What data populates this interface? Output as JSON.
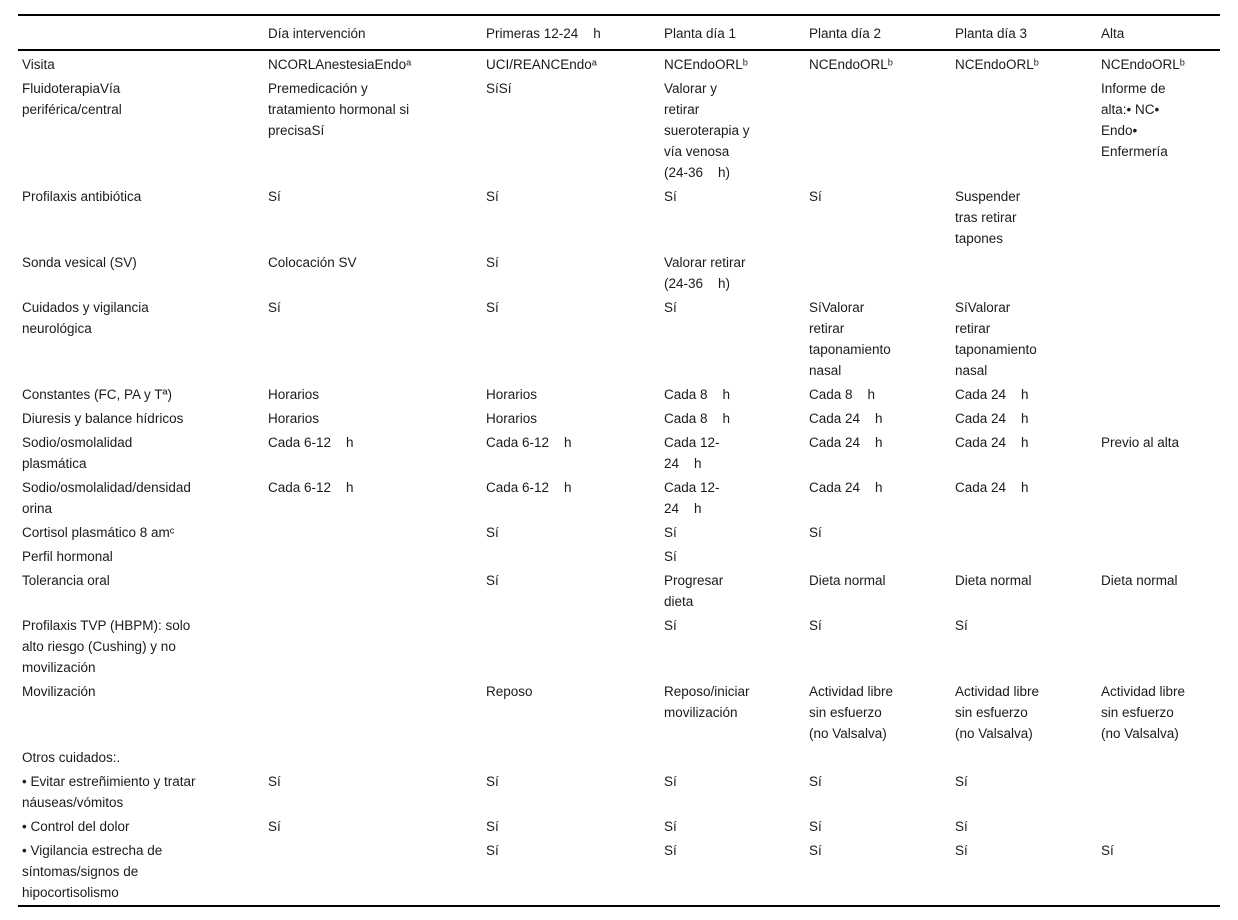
{
  "colors": {
    "background": "#ffffff",
    "text": "#1b1b1b",
    "rule": "#000000"
  },
  "table": {
    "columns": [
      "",
      "Día intervención",
      "Primeras 12-24    h",
      "Planta día 1",
      "Planta día 2",
      "Planta día 3",
      "Alta"
    ],
    "rows": [
      {
        "label": "Visita",
        "cells": [
          "NCORLAnestesiaEndoᵃ",
          "UCI/REANCEndoᵃ",
          "NCEndoORLᵇ",
          "NCEndoORLᵇ",
          "NCEndoORLᵇ",
          "NCEndoORLᵇ"
        ]
      },
      {
        "label": "FluidoterapiaVía\nperiférica/central",
        "cells": [
          "Premedicación y\ntratamiento hormonal si\nprecisaSí",
          "SíSí",
          "Valorar y\nretirar\nsueroterapia y\nvía venosa\n(24-36    h)",
          "",
          "",
          "Informe de\nalta:• NC•\nEndo•\nEnfermería"
        ]
      },
      {
        "label": "Profilaxis antibiótica",
        "cells": [
          "Sí",
          "Sí",
          "Sí",
          "Sí",
          "Suspender\ntras retirar\ntapones",
          ""
        ]
      },
      {
        "label": "Sonda vesical (SV)",
        "cells": [
          "Colocación SV",
          "Sí",
          "Valorar retirar\n(24-36    h)",
          "",
          "",
          ""
        ]
      },
      {
        "label": "Cuidados y vigilancia\nneurológica",
        "cells": [
          "Sí",
          "Sí",
          "Sí",
          "SíValorar\nretirar\ntaponamiento\nnasal",
          "SíValorar\nretirar\ntaponamiento\nnasal",
          ""
        ]
      },
      {
        "label": "Constantes (FC, PA y Tª)",
        "cells": [
          "Horarios",
          "Horarios",
          "Cada 8    h",
          "Cada 8    h",
          "Cada 24    h",
          ""
        ]
      },
      {
        "label": "Diuresis y balance hídricos",
        "cells": [
          "Horarios",
          "Horarios",
          "Cada 8    h",
          "Cada 24    h",
          "Cada 24    h",
          ""
        ]
      },
      {
        "label": "Sodio/osmolalidad\nplasmática",
        "cells": [
          "Cada 6-12    h",
          "Cada 6-12    h",
          "Cada 12-\n24    h",
          "Cada 24    h",
          "Cada 24    h",
          "Previo al alta"
        ]
      },
      {
        "label": "Sodio/osmolalidad/densidad\norina",
        "cells": [
          "Cada 6-12    h",
          "Cada 6-12    h",
          "Cada 12-\n24    h",
          "Cada 24    h",
          "Cada 24    h",
          ""
        ]
      },
      {
        "label": "Cortisol plasmático 8 amᶜ",
        "cells": [
          "",
          "Sí",
          "Sí",
          "Sí",
          "",
          ""
        ]
      },
      {
        "label": "Perfil hormonal",
        "cells": [
          "",
          "",
          "Sí",
          "",
          "",
          ""
        ]
      },
      {
        "label": "Tolerancia oral",
        "cells": [
          "",
          "Sí",
          "Progresar\ndieta",
          "Dieta normal",
          "Dieta normal",
          "Dieta normal"
        ]
      },
      {
        "label": "Profilaxis TVP (HBPM): solo\nalto riesgo (Cushing) y no\nmovilización",
        "cells": [
          "",
          "",
          "Sí",
          "Sí",
          "Sí",
          ""
        ]
      },
      {
        "label": "Movilización",
        "cells": [
          "",
          "Reposo",
          "Reposo/iniciar\nmovilización",
          "Actividad libre\nsin esfuerzo\n(no Valsalva)",
          "Actividad libre\nsin esfuerzo\n(no Valsalva)",
          "Actividad libre\nsin esfuerzo\n(no Valsalva)"
        ]
      },
      {
        "label": "Otros cuidados:.",
        "cells": [
          "",
          "",
          "",
          "",
          "",
          ""
        ]
      },
      {
        "label": "• Evitar estreñimiento y tratar\nnáuseas/vómitos",
        "cells": [
          "Sí",
          "Sí",
          "Sí",
          "Sí",
          "Sí",
          ""
        ]
      },
      {
        "label": "• Control del dolor",
        "cells": [
          "Sí",
          "Sí",
          "Sí",
          "Sí",
          "Sí",
          ""
        ]
      },
      {
        "label": "• Vigilancia estrecha de\nsíntomas/signos de\nhipocortisolismo",
        "cells": [
          "",
          "Sí",
          "Sí",
          "Sí",
          "Sí",
          "Sí"
        ]
      }
    ]
  }
}
